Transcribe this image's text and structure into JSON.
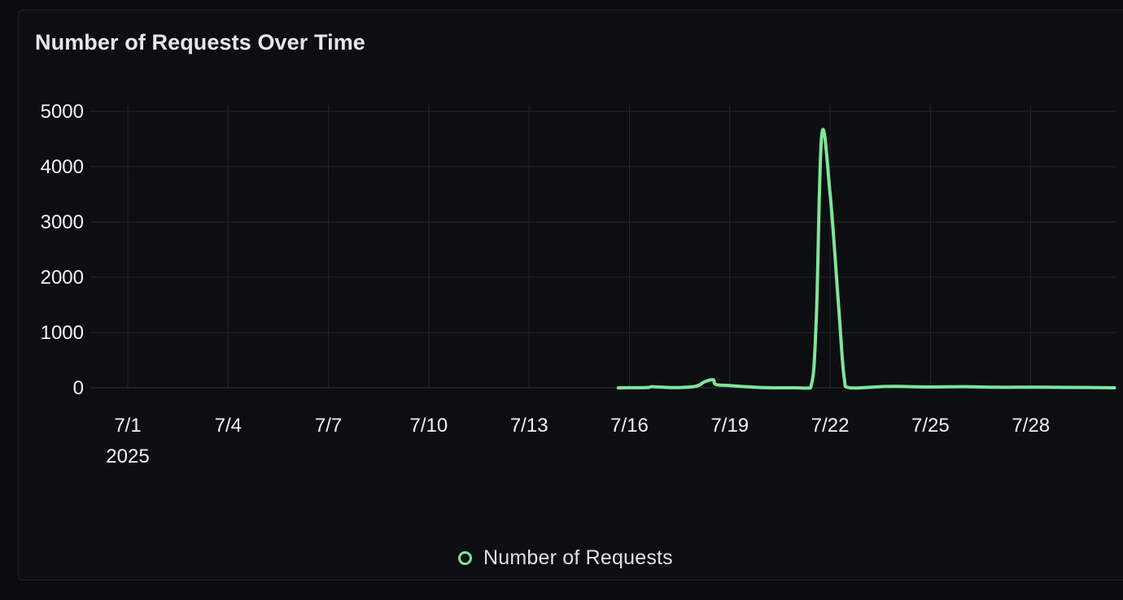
{
  "chart_data": {
    "type": "line",
    "title": "Number of Requests Over Time",
    "xlabel": "",
    "ylabel": "",
    "grid": true,
    "legend_position": "bottom-center",
    "x_range": [
      "2025-07-01",
      "2025-07-31"
    ],
    "ylim": [
      0,
      5000
    ],
    "y_ticks": [
      0,
      1000,
      2000,
      3000,
      4000,
      5000
    ],
    "x_ticks": [
      {
        "date": "2025-07-01",
        "label": "7/1",
        "sublabel": "2025"
      },
      {
        "date": "2025-07-04",
        "label": "7/4"
      },
      {
        "date": "2025-07-07",
        "label": "7/7"
      },
      {
        "date": "2025-07-10",
        "label": "7/10"
      },
      {
        "date": "2025-07-13",
        "label": "7/13"
      },
      {
        "date": "2025-07-16",
        "label": "7/16"
      },
      {
        "date": "2025-07-19",
        "label": "7/19"
      },
      {
        "date": "2025-07-22",
        "label": "7/22"
      },
      {
        "date": "2025-07-25",
        "label": "7/25"
      },
      {
        "date": "2025-07-28",
        "label": "7/28"
      }
    ],
    "series": [
      {
        "name": "Number of Requests",
        "color": "#7ee59a",
        "points": [
          [
            "2025-07-15T16:00",
            0
          ],
          [
            "2025-07-16T12:00",
            5
          ],
          [
            "2025-07-16T16:00",
            20
          ],
          [
            "2025-07-17T00:00",
            10
          ],
          [
            "2025-07-17T12:00",
            5
          ],
          [
            "2025-07-18T00:00",
            30
          ],
          [
            "2025-07-18T06:00",
            110
          ],
          [
            "2025-07-18T12:00",
            145
          ],
          [
            "2025-07-18T14:00",
            60
          ],
          [
            "2025-07-19T00:00",
            40
          ],
          [
            "2025-07-20T00:00",
            5
          ],
          [
            "2025-07-21T00:00",
            0
          ],
          [
            "2025-07-21T10:00",
            0
          ],
          [
            "2025-07-21T14:00",
            1200
          ],
          [
            "2025-07-21T18:00",
            4570
          ],
          [
            "2025-07-22T00:00",
            3500
          ],
          [
            "2025-07-22T06:00",
            1500
          ],
          [
            "2025-07-22T10:00",
            200
          ],
          [
            "2025-07-22T14:00",
            0
          ],
          [
            "2025-07-23T12:00",
            20
          ],
          [
            "2025-07-24T00:00",
            25
          ],
          [
            "2025-07-25T00:00",
            15
          ],
          [
            "2025-07-26T00:00",
            20
          ],
          [
            "2025-07-27T00:00",
            10
          ],
          [
            "2025-07-28T00:00",
            12
          ],
          [
            "2025-07-29T00:00",
            8
          ],
          [
            "2025-07-30T12:00",
            0
          ]
        ]
      }
    ]
  }
}
